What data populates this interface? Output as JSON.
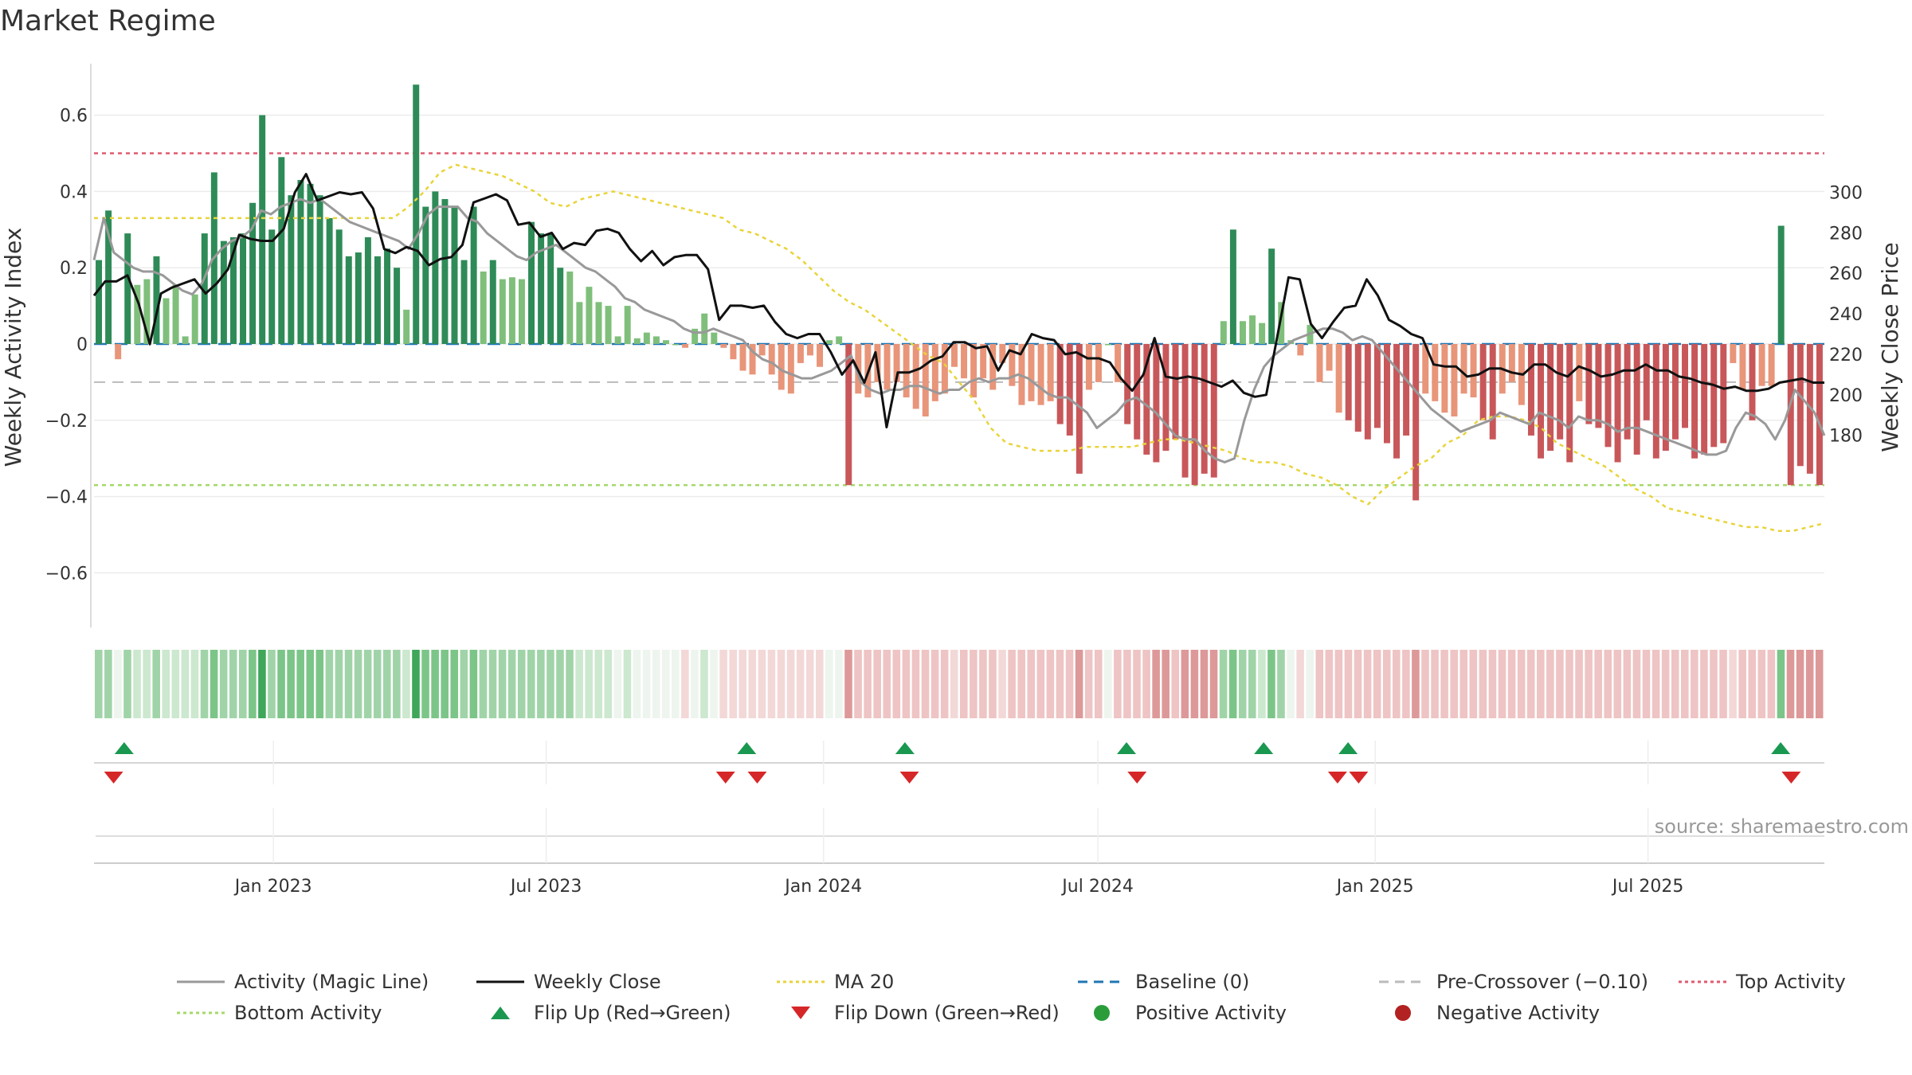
{
  "chart_data": {
    "type": "bar",
    "title": "Market Regime",
    "ylabel": "Weekly Activity Index",
    "y2label": "Weekly Close Price",
    "source": "source: sharemaestro.com",
    "ylim": [
      -0.73,
      0.73
    ],
    "y2lim": [
      177,
      313
    ],
    "yticks": [
      {
        "v": 0.6,
        "label": "0.6"
      },
      {
        "v": 0.4,
        "label": "0.4"
      },
      {
        "v": 0.2,
        "label": "0.2"
      },
      {
        "v": 0,
        "label": "0"
      },
      {
        "v": -0.2,
        "label": "−0.2"
      },
      {
        "v": -0.4,
        "label": "−0.4"
      },
      {
        "v": -0.6,
        "label": "−0.6"
      }
    ],
    "y2ticks": [
      {
        "v": 300,
        "label": "300"
      },
      {
        "v": 280,
        "label": "280"
      },
      {
        "v": 260,
        "label": "260"
      },
      {
        "v": 240,
        "label": "240"
      },
      {
        "v": 220,
        "label": "220"
      },
      {
        "v": 200,
        "label": "200"
      },
      {
        "v": 180,
        "label": "180"
      }
    ],
    "x_start": "2022-09-04",
    "x_end": "2025-10-26",
    "xticks": [
      {
        "date": "2023-01-01",
        "label": "Jan 2023"
      },
      {
        "date": "2023-07-01",
        "label": "Jul 2023"
      },
      {
        "date": "2024-01-01",
        "label": "Jan 2024"
      },
      {
        "date": "2024-07-01",
        "label": "Jul 2024"
      },
      {
        "date": "2025-01-01",
        "label": "Jan 2025"
      },
      {
        "date": "2025-07-01",
        "label": "Jul 2025"
      }
    ],
    "thresholds": {
      "top": 0.5,
      "pre_crossover": -0.1,
      "bottom": -0.37,
      "baseline": 0
    },
    "colors": {
      "pos_strong": "#2e8b57",
      "pos_weak": "#7fbf7b",
      "neg_strong": "#c8575a",
      "neg_weak": "#e8957a",
      "close": "#111111",
      "magic": "#999999",
      "ma": "#e8d43a",
      "baseline": "#1f77b4",
      "top": "#e05a70",
      "bottom": "#a6d96a",
      "pre": "#bbbbbb",
      "flip_up": "#1a9850",
      "flip_down": "#d62728",
      "pos_dot": "#2a9d3a",
      "neg_dot": "#b22222"
    },
    "activity": [
      0.22,
      0.35,
      -0.04,
      0.29,
      0.155,
      0.17,
      0.23,
      0.12,
      0.155,
      0.02,
      0.13,
      0.29,
      0.45,
      0.27,
      0.28,
      0.29,
      0.37,
      0.6,
      0.3,
      0.49,
      0.39,
      0.43,
      0.42,
      0.39,
      0.33,
      0.3,
      0.23,
      0.24,
      0.28,
      0.23,
      0.25,
      0.2,
      0.09,
      0.68,
      0.36,
      0.4,
      0.38,
      0.36,
      0.22,
      0.36,
      0.19,
      0.22,
      0.17,
      0.175,
      0.17,
      0.32,
      0.29,
      0.29,
      0.2,
      0.19,
      0.11,
      0.15,
      0.11,
      0.1,
      0.02,
      0.1,
      0.015,
      0.03,
      0.02,
      0.01,
      0.0,
      -0.01,
      0.04,
      0.08,
      0.03,
      -0.01,
      -0.04,
      -0.07,
      -0.08,
      -0.03,
      -0.08,
      -0.12,
      -0.13,
      -0.05,
      -0.03,
      -0.06,
      0.01,
      0.02,
      -0.37,
      -0.13,
      -0.14,
      -0.1,
      -0.12,
      -0.1,
      -0.14,
      -0.17,
      -0.19,
      -0.15,
      -0.13,
      -0.06,
      -0.09,
      -0.14,
      -0.09,
      -0.12,
      -0.05,
      -0.11,
      -0.16,
      -0.15,
      -0.16,
      -0.15,
      -0.21,
      -0.24,
      -0.34,
      -0.12,
      -0.1,
      -0.0,
      -0.1,
      -0.21,
      -0.25,
      -0.29,
      -0.31,
      -0.28,
      -0.25,
      -0.35,
      -0.37,
      -0.34,
      -0.35,
      0.06,
      0.3,
      0.06,
      0.075,
      0.055,
      0.25,
      0.11,
      0.01,
      -0.03,
      0.05,
      -0.1,
      -0.07,
      -0.18,
      -0.2,
      -0.23,
      -0.25,
      -0.22,
      -0.26,
      -0.3,
      -0.24,
      -0.41,
      -0.13,
      -0.15,
      -0.18,
      -0.19,
      -0.13,
      -0.14,
      -0.2,
      -0.25,
      -0.13,
      -0.1,
      -0.16,
      -0.24,
      -0.3,
      -0.28,
      -0.25,
      -0.31,
      -0.15,
      -0.21,
      -0.22,
      -0.27,
      -0.31,
      -0.25,
      -0.29,
      -0.2,
      -0.3,
      -0.28,
      -0.25,
      -0.22,
      -0.3,
      -0.29,
      -0.27,
      -0.26,
      -0.05,
      -0.12,
      -0.2,
      -0.11,
      -0.11,
      0.31,
      -0.37,
      -0.32,
      -0.34,
      -0.37
    ],
    "close": [
      249,
      256,
      256,
      259,
      245,
      225,
      250,
      253,
      255,
      257,
      250,
      255,
      262,
      279,
      277,
      276,
      276,
      282,
      300,
      309,
      296,
      298,
      300,
      299,
      300,
      292,
      272,
      270,
      273,
      271,
      264,
      267,
      268,
      274,
      295,
      297,
      299,
      296,
      284,
      285,
      278,
      280,
      272,
      275,
      274,
      281,
      282,
      280,
      272,
      266,
      271,
      264,
      268,
      269,
      269,
      262,
      237,
      244,
      244,
      243,
      244,
      236,
      230,
      228,
      230,
      230,
      221,
      210,
      217,
      206,
      221,
      184,
      211,
      211,
      213,
      217,
      219,
      226,
      226,
      223,
      224,
      212,
      222,
      220,
      230,
      228,
      227,
      220,
      221,
      218,
      218,
      216,
      208,
      202,
      210,
      228,
      209,
      208,
      209,
      208,
      206,
      204,
      207,
      201,
      199,
      200,
      229,
      258,
      257,
      235,
      228,
      236,
      243,
      244,
      257,
      249,
      237,
      234,
      230,
      228,
      215,
      214,
      214,
      209,
      210,
      213,
      213,
      211,
      210,
      215,
      215,
      211,
      209,
      214,
      212,
      209,
      210,
      212,
      212,
      215,
      212,
      212,
      209,
      208,
      206,
      205,
      203,
      204,
      202,
      202,
      203,
      206,
      207,
      208,
      206,
      206
    ],
    "magic": [
      0.22,
      0.33,
      0.24,
      0.22,
      0.2,
      0.19,
      0.19,
      0.18,
      0.16,
      0.14,
      0.13,
      0.16,
      0.22,
      0.25,
      0.27,
      0.28,
      0.3,
      0.35,
      0.34,
      0.36,
      0.37,
      0.38,
      0.37,
      0.38,
      0.36,
      0.34,
      0.32,
      0.31,
      0.3,
      0.29,
      0.28,
      0.27,
      0.25,
      0.29,
      0.34,
      0.36,
      0.36,
      0.36,
      0.33,
      0.32,
      0.29,
      0.27,
      0.25,
      0.23,
      0.22,
      0.24,
      0.25,
      0.26,
      0.24,
      0.22,
      0.2,
      0.19,
      0.17,
      0.15,
      0.12,
      0.11,
      0.09,
      0.08,
      0.07,
      0.06,
      0.04,
      0.03,
      0.03,
      0.04,
      0.03,
      0.02,
      0.01,
      -0.02,
      -0.04,
      -0.05,
      -0.07,
      -0.08,
      -0.09,
      -0.09,
      -0.08,
      -0.07,
      -0.05,
      -0.03,
      -0.1,
      -0.12,
      -0.13,
      -0.12,
      -0.12,
      -0.11,
      -0.11,
      -0.12,
      -0.13,
      -0.12,
      -0.12,
      -0.1,
      -0.09,
      -0.1,
      -0.09,
      -0.09,
      -0.08,
      -0.09,
      -0.11,
      -0.13,
      -0.14,
      -0.14,
      -0.16,
      -0.18,
      -0.22,
      -0.2,
      -0.18,
      -0.15,
      -0.14,
      -0.16,
      -0.18,
      -0.21,
      -0.24,
      -0.25,
      -0.25,
      -0.28,
      -0.3,
      -0.31,
      -0.3,
      -0.2,
      -0.12,
      -0.06,
      -0.03,
      -0.01,
      0.01,
      0.02,
      0.03,
      0.04,
      0.04,
      0.03,
      0.01,
      0.02,
      0.01,
      -0.02,
      -0.05,
      -0.08,
      -0.11,
      -0.14,
      -0.17,
      -0.19,
      -0.21,
      -0.23,
      -0.22,
      -0.21,
      -0.2,
      -0.18,
      -0.19,
      -0.2,
      -0.21,
      -0.18,
      -0.19,
      -0.2,
      -0.22,
      -0.19,
      -0.2,
      -0.2,
      -0.21,
      -0.23,
      -0.22,
      -0.22,
      -0.23,
      -0.24,
      -0.25,
      -0.26,
      -0.27,
      -0.28,
      -0.29,
      -0.29,
      -0.28,
      -0.22,
      -0.18,
      -0.19,
      -0.21,
      -0.25,
      -0.2,
      -0.12,
      -0.15,
      -0.18,
      -0.24
    ],
    "ma20": [
      0.33,
      0.33,
      0.33,
      0.33,
      0.33,
      0.33,
      0.33,
      0.33,
      0.33,
      0.33,
      0.33,
      0.33,
      0.33,
      0.33,
      0.33,
      0.33,
      0.33,
      0.33,
      0.33,
      0.33,
      0.36,
      0.4,
      0.45,
      0.47,
      0.46,
      0.45,
      0.44,
      0.42,
      0.4,
      0.37,
      0.36,
      0.38,
      0.39,
      0.4,
      0.39,
      0.38,
      0.37,
      0.36,
      0.35,
      0.34,
      0.33,
      0.3,
      0.29,
      0.27,
      0.25,
      0.22,
      0.18,
      0.14,
      0.11,
      0.09,
      0.06,
      0.03,
      0.0,
      -0.03,
      -0.05,
      -0.1,
      -0.15,
      -0.22,
      -0.26,
      -0.27,
      -0.28,
      -0.28,
      -0.28,
      -0.27,
      -0.27,
      -0.27,
      -0.27,
      -0.26,
      -0.25,
      -0.25,
      -0.26,
      -0.27,
      -0.28,
      -0.3,
      -0.31,
      -0.31,
      -0.32,
      -0.34,
      -0.35,
      -0.37,
      -0.4,
      -0.42,
      -0.38,
      -0.35,
      -0.32,
      -0.3,
      -0.26,
      -0.24,
      -0.2,
      -0.19,
      -0.19,
      -0.2,
      -0.22,
      -0.26,
      -0.28,
      -0.3,
      -0.32,
      -0.35,
      -0.38,
      -0.4,
      -0.43,
      -0.44,
      -0.45,
      -0.46,
      -0.47,
      -0.48,
      -0.48,
      -0.49,
      -0.49,
      -0.48,
      -0.47
    ],
    "regime_strip": [
      2,
      2,
      0,
      2,
      1,
      1,
      2,
      1,
      1,
      1,
      1,
      2,
      3,
      2,
      2,
      2,
      3,
      4,
      2,
      3,
      3,
      3,
      3,
      3,
      2,
      2,
      2,
      2,
      2,
      2,
      2,
      2,
      1,
      4,
      3,
      3,
      3,
      3,
      2,
      3,
      2,
      2,
      2,
      2,
      2,
      2,
      2,
      2,
      2,
      2,
      1,
      1,
      1,
      1,
      0,
      1,
      0,
      0,
      0,
      0,
      0,
      -1,
      0,
      1,
      0,
      -1,
      -1,
      -1,
      -1,
      -1,
      -1,
      -1,
      -1,
      -1,
      -1,
      -1,
      0,
      0,
      -3,
      -2,
      -2,
      -2,
      -2,
      -2,
      -2,
      -2,
      -2,
      -2,
      -2,
      -1,
      -2,
      -2,
      -2,
      -2,
      -1,
      -2,
      -2,
      -2,
      -2,
      -2,
      -2,
      -2,
      -3,
      -2,
      -2,
      0,
      -2,
      -2,
      -2,
      -2,
      -3,
      -3,
      -2,
      -3,
      -3,
      -3,
      -3,
      2,
      3,
      2,
      2,
      1,
      3,
      2,
      0,
      -1,
      0,
      -2,
      -2,
      -2,
      -2,
      -2,
      -2,
      -2,
      -2,
      -2,
      -2,
      -3,
      -2,
      -2,
      -2,
      -2,
      -2,
      -2,
      -2,
      -2,
      -2,
      -2,
      -2,
      -2,
      -2,
      -2,
      -2,
      -2,
      -2,
      -2,
      -2,
      -2,
      -2,
      -2,
      -2,
      -2,
      -2,
      -2,
      -2,
      -2,
      -2,
      -2,
      -2,
      -2,
      -1,
      -2,
      -2,
      -2,
      -2,
      3,
      -3,
      -3,
      -3,
      -3
    ],
    "flips_up": [
      "2022-09-24",
      "2023-11-11",
      "2024-02-24",
      "2024-07-20",
      "2024-10-19",
      "2024-12-14",
      "2025-09-27"
    ],
    "flips_down": [
      "2022-09-17",
      "2023-10-28",
      "2023-11-18",
      "2024-02-27",
      "2024-07-27",
      "2024-12-07",
      "2024-12-21",
      "2025-10-04"
    ],
    "legend": [
      {
        "label": "Activity (Magic Line)",
        "kind": "line",
        "color": "#999999",
        "dash": ""
      },
      {
        "label": "Weekly Close",
        "kind": "line",
        "color": "#111111",
        "dash": ""
      },
      {
        "label": "MA 20",
        "kind": "line",
        "color": "#e8d43a",
        "dash": "4,4"
      },
      {
        "label": "Baseline (0)",
        "kind": "line",
        "color": "#1f77b4",
        "dash": "12,8"
      },
      {
        "label": "Pre-Crossover (−0.10)",
        "kind": "line",
        "color": "#bbbbbb",
        "dash": "12,8"
      },
      {
        "label": "Top Activity",
        "kind": "line",
        "color": "#e05a70",
        "dash": "4,4"
      },
      {
        "label": "Bottom Activity",
        "kind": "line",
        "color": "#a6d96a",
        "dash": "4,4"
      },
      {
        "label": "Flip Up (Red→Green)",
        "kind": "tri-up",
        "color": "#1a9850"
      },
      {
        "label": "Flip Down (Green→Red)",
        "kind": "tri-down",
        "color": "#d62728"
      },
      {
        "label": "Positive Activity",
        "kind": "dot",
        "color": "#2a9d3a"
      },
      {
        "label": "Negative Activity",
        "kind": "dot",
        "color": "#b22222"
      }
    ]
  }
}
